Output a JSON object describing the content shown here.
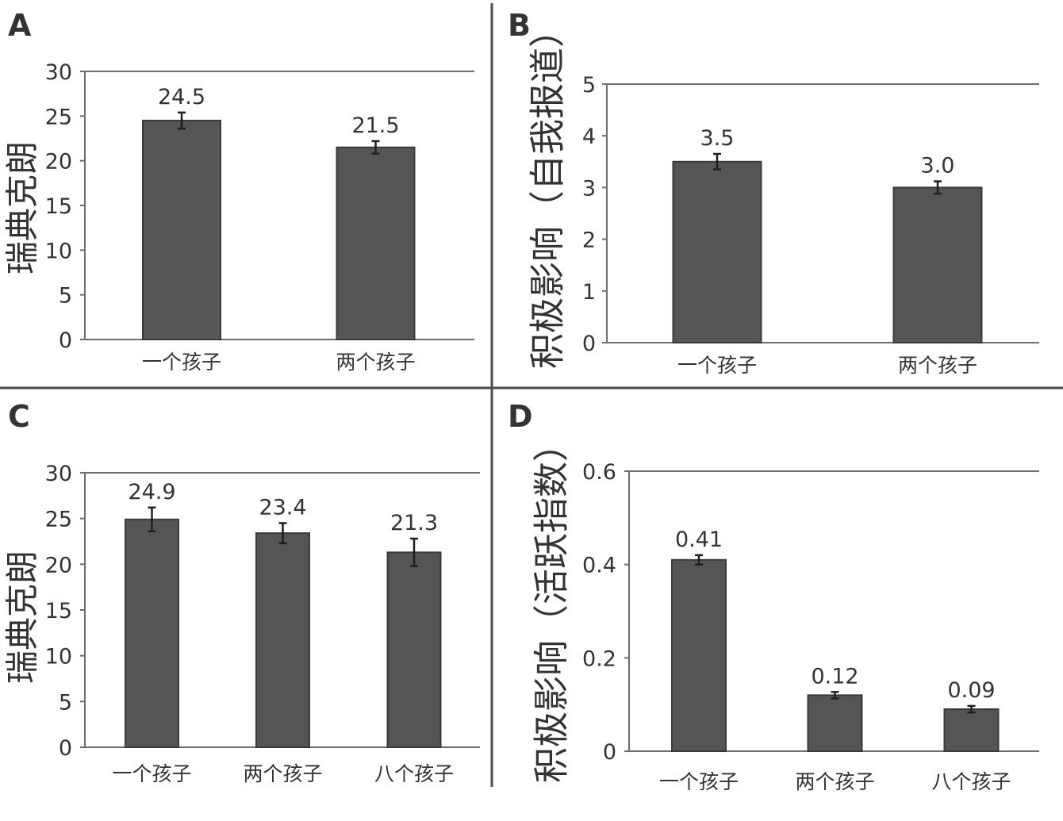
{
  "colors": {
    "bar": "#555555",
    "bar_edge": "#3a3a3a",
    "error": "#1f1f1f",
    "axis": "#6e6e6e",
    "divider": "#4d4d4d"
  },
  "chart_data": [
    {
      "panel_label": "A",
      "type": "bar",
      "ylabel": "瑞典克朗",
      "categories": [
        "一个孩子",
        "两个孩子"
      ],
      "values": [
        24.5,
        21.5
      ],
      "value_labels": [
        "24.5",
        "21.5"
      ],
      "errors": [
        0.9,
        0.7
      ],
      "ylim": [
        0,
        30
      ],
      "yticks": [
        0,
        5,
        10,
        15,
        20,
        25,
        30
      ],
      "grid": false
    },
    {
      "panel_label": "B",
      "type": "bar",
      "ylabel": "积极影响（自我报道）",
      "categories": [
        "一个孩子",
        "两个孩子"
      ],
      "values": [
        3.5,
        3.0
      ],
      "value_labels": [
        "3.5",
        "3.0"
      ],
      "errors": [
        0.15,
        0.12
      ],
      "ylim": [
        0,
        5
      ],
      "yticks": [
        0,
        1,
        2,
        3,
        4,
        5
      ],
      "grid": false
    },
    {
      "panel_label": "C",
      "type": "bar",
      "ylabel": "瑞典克朗",
      "categories": [
        "一个孩子",
        "两个孩子",
        "八个孩子"
      ],
      "values": [
        24.9,
        23.4,
        21.3
      ],
      "value_labels": [
        "24.9",
        "23.4",
        "21.3"
      ],
      "errors": [
        1.3,
        1.1,
        1.5
      ],
      "ylim": [
        0,
        30
      ],
      "yticks": [
        0,
        5,
        10,
        15,
        20,
        25,
        30
      ],
      "grid": false
    },
    {
      "panel_label": "D",
      "type": "bar",
      "ylabel": "积极影响（活跃指数）",
      "categories": [
        "一个孩子",
        "两个孩子",
        "八个孩子"
      ],
      "values": [
        0.41,
        0.12,
        0.09
      ],
      "value_labels": [
        "0.41",
        "0.12",
        "0.09"
      ],
      "errors": [
        0.01,
        0.007,
        0.007
      ],
      "ylim": [
        0,
        0.6
      ],
      "yticks": [
        0,
        0.2,
        0.4,
        0.6
      ],
      "grid": false
    }
  ]
}
